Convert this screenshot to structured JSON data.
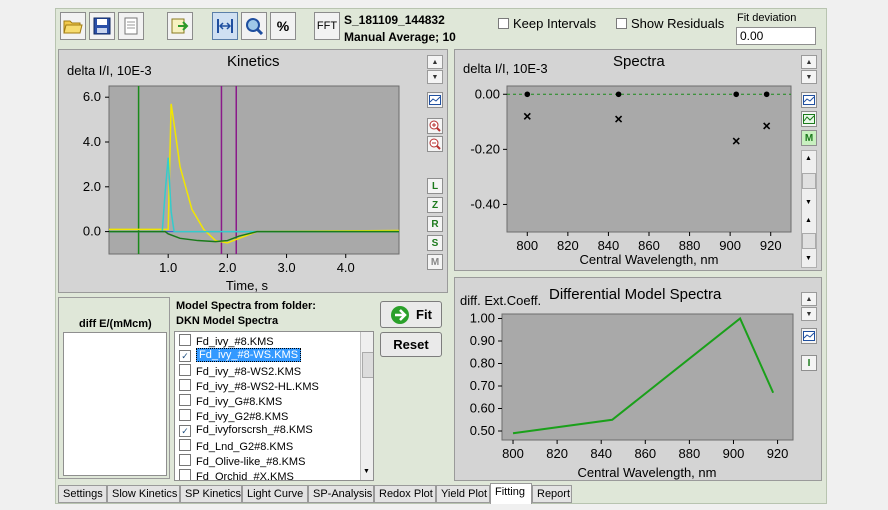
{
  "toolbar": {
    "fft_label": "FFT",
    "percent_label": "%",
    "file_name": "S_181109_144832",
    "average_label": "Manual Average; 10",
    "keep_intervals_label": "Keep Intervals",
    "show_residuals_label": "Show Residuals",
    "fit_deviation_label": "Fit deviation",
    "fit_deviation_value": "0.00"
  },
  "kinetics": {
    "title": "Kinetics",
    "ylabel": "delta I/I, 10E-3",
    "xlabel": "Time, s",
    "side_buttons": [
      "L",
      "Z",
      "R",
      "S",
      "M"
    ]
  },
  "spectra": {
    "title": "Spectra",
    "ylabel": "delta I/I, 10E-3",
    "xlabel": "Central Wavelength, nm"
  },
  "model_spectra": {
    "title": "Differential Model Spectra",
    "ylabel": "diff. Ext.Coeff.",
    "xlabel": "Central Wavelength, nm"
  },
  "diff_panel": {
    "header": "diff E/(mMcm)"
  },
  "model_list": {
    "header1": "Model Spectra from folder:",
    "header2": "DKN Model Spectra",
    "items": [
      {
        "label": "Fd_ivy_#8.KMS",
        "checked": false,
        "selected": false
      },
      {
        "label": "Fd_ivy_#8-WS.KMS",
        "checked": true,
        "selected": true
      },
      {
        "label": "Fd_ivy_#8-WS2.KMS",
        "checked": false,
        "selected": false
      },
      {
        "label": "Fd_ivy_#8-WS2-HL.KMS",
        "checked": false,
        "selected": false
      },
      {
        "label": "Fd_ivy_G#8.KMS",
        "checked": false,
        "selected": false
      },
      {
        "label": "Fd_ivy_G2#8.KMS",
        "checked": false,
        "selected": false
      },
      {
        "label": "Fd_ivyforscrsh_#8.KMS",
        "checked": true,
        "selected": false
      },
      {
        "label": "Fd_Lnd_G2#8.KMS",
        "checked": false,
        "selected": false
      },
      {
        "label": "Fd_Olive-like_#8.KMS",
        "checked": false,
        "selected": false
      },
      {
        "label": "Fd_Orchid_#X.KMS",
        "checked": false,
        "selected": false
      }
    ]
  },
  "buttons": {
    "fit": "Fit",
    "reset": "Reset"
  },
  "tabs": [
    "Settings",
    "Slow Kinetics",
    "SP Kinetics",
    "Light Curve",
    "SP-Analysis",
    "Redox Plot",
    "Yield Plot",
    "Fitting",
    "Report"
  ],
  "active_tab": "Fitting",
  "chart_data": [
    {
      "type": "line",
      "title": "Kinetics",
      "xlabel": "Time, s",
      "ylabel": "delta I/I, 10E-3",
      "xlim": [
        0,
        4.9
      ],
      "ylim": [
        -1.0,
        6.5
      ],
      "xticks": [
        "1.0",
        "2.0",
        "3.0",
        "4.0"
      ],
      "yticks": [
        "0.0",
        "2.0",
        "4.0",
        "6.0"
      ],
      "series": [
        {
          "color": "#f2e600",
          "x": [
            0,
            0.9,
            1.0,
            1.05,
            1.1,
            1.2,
            1.4,
            1.6,
            1.8,
            2.0,
            2.2,
            2.5,
            4.9
          ],
          "y": [
            0.1,
            0.1,
            0.1,
            5.7,
            4.8,
            2.9,
            1.0,
            0.1,
            -0.4,
            -0.5,
            -0.3,
            0.0,
            0.05
          ]
        },
        {
          "color": "#33cccc",
          "x": [
            0,
            0.9,
            0.95,
            1.0,
            1.05,
            1.1,
            1.3,
            4.9
          ],
          "y": [
            0.0,
            0.0,
            1.8,
            3.3,
            0.9,
            0.0,
            0.0,
            0.0
          ]
        },
        {
          "color": "#1a7a1a",
          "x": [
            0,
            0.95,
            1.0,
            1.2,
            1.5,
            1.8,
            2.0,
            2.2,
            2.5,
            4.9
          ],
          "y": [
            0.0,
            0.0,
            -0.1,
            -0.3,
            -0.4,
            -0.45,
            -0.4,
            -0.2,
            0.0,
            0.0
          ]
        }
      ],
      "vlines": [
        {
          "x": 0.5,
          "color": "#1a8a1a"
        },
        {
          "x": 1.9,
          "color": "#8a1a8a"
        },
        {
          "x": 2.15,
          "color": "#8a1a8a"
        }
      ]
    },
    {
      "type": "scatter",
      "title": "Spectra",
      "xlabel": "Central Wavelength, nm",
      "ylabel": "delta I/I, 10E-3",
      "xlim": [
        790,
        930
      ],
      "ylim": [
        -0.5,
        0.03
      ],
      "xticks": [
        800,
        820,
        840,
        860,
        880,
        900,
        920
      ],
      "yticks": [
        "0.00",
        "-0.20",
        "-0.40"
      ],
      "series": [
        {
          "marker": "dot",
          "x": [
            800,
            845,
            903,
            918
          ],
          "y": [
            0.0,
            0.0,
            0.0,
            0.0
          ]
        },
        {
          "marker": "x",
          "x": [
            800,
            845,
            903,
            918
          ],
          "y": [
            -0.08,
            -0.09,
            -0.17,
            -0.115
          ]
        }
      ]
    },
    {
      "type": "line",
      "title": "Differential Model Spectra",
      "xlabel": "Central Wavelength, nm",
      "ylabel": "diff. Ext.Coeff.",
      "xlim": [
        795,
        927
      ],
      "ylim": [
        0.46,
        1.02
      ],
      "xticks": [
        800,
        820,
        840,
        860,
        880,
        900,
        920
      ],
      "yticks": [
        "1.00",
        "0.90",
        "0.80",
        "0.70",
        "0.60",
        "0.50"
      ],
      "series": [
        {
          "color": "#1aa01a",
          "x": [
            800,
            845,
            903,
            918
          ],
          "y": [
            0.49,
            0.55,
            1.0,
            0.67
          ]
        }
      ]
    }
  ]
}
